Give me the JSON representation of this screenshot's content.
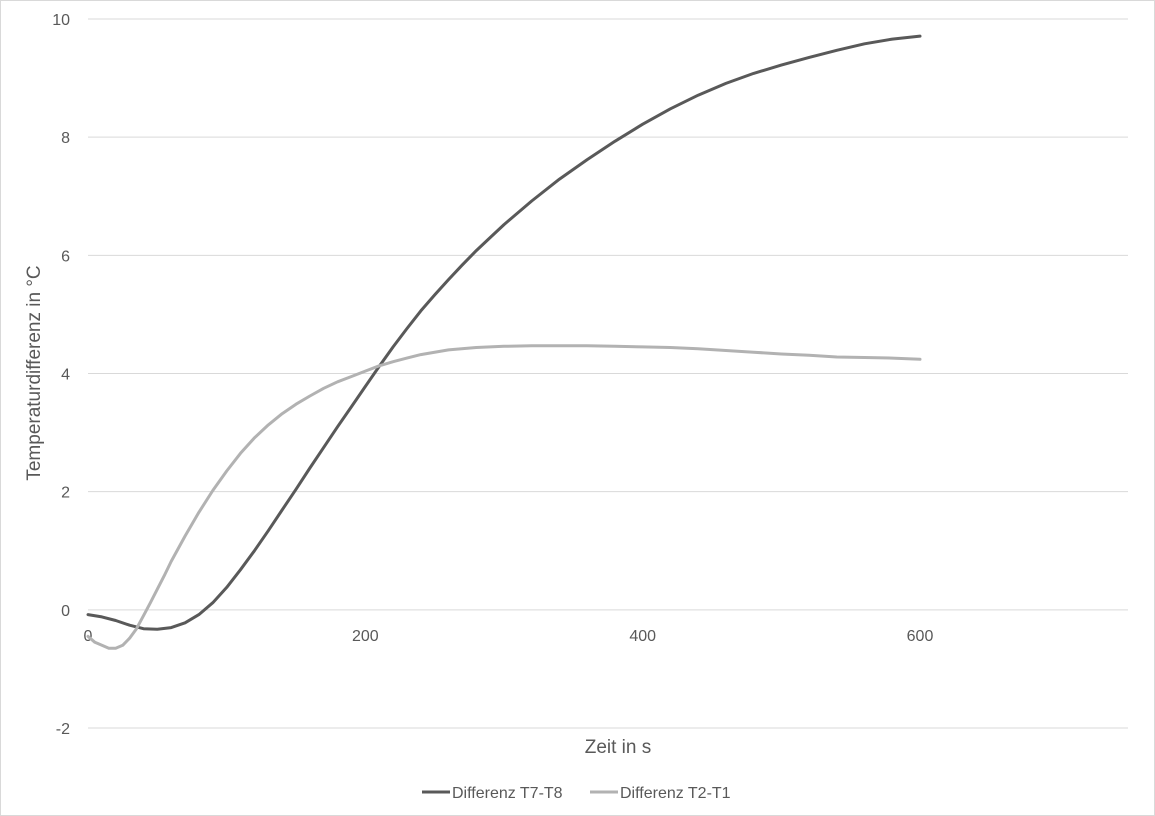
{
  "chart_data": {
    "type": "line",
    "title": "",
    "xlabel": "Zeit in s",
    "ylabel": "Temperaturdifferenz in °C",
    "xlim": [
      0,
      750
    ],
    "ylim": [
      -2,
      10
    ],
    "x_ticks": [
      "0",
      "200",
      "400",
      "600"
    ],
    "y_ticks": [
      "-2",
      "0",
      "2",
      "4",
      "6",
      "8",
      "10"
    ],
    "grid": true,
    "legend_position": "bottom",
    "series": [
      {
        "name": "Differenz T7-T8",
        "color": "#595959",
        "points": [
          [
            0,
            -0.08
          ],
          [
            10,
            -0.12
          ],
          [
            20,
            -0.18
          ],
          [
            30,
            -0.26
          ],
          [
            40,
            -0.32
          ],
          [
            50,
            -0.33
          ],
          [
            60,
            -0.3
          ],
          [
            70,
            -0.22
          ],
          [
            80,
            -0.08
          ],
          [
            90,
            0.12
          ],
          [
            100,
            0.38
          ],
          [
            110,
            0.68
          ],
          [
            120,
            1.0
          ],
          [
            130,
            1.34
          ],
          [
            140,
            1.69
          ],
          [
            150,
            2.04
          ],
          [
            160,
            2.4
          ],
          [
            170,
            2.75
          ],
          [
            180,
            3.1
          ],
          [
            190,
            3.44
          ],
          [
            200,
            3.78
          ],
          [
            210,
            4.12
          ],
          [
            220,
            4.45
          ],
          [
            230,
            4.76
          ],
          [
            240,
            5.06
          ],
          [
            250,
            5.33
          ],
          [
            260,
            5.59
          ],
          [
            270,
            5.84
          ],
          [
            280,
            6.08
          ],
          [
            290,
            6.3
          ],
          [
            300,
            6.52
          ],
          [
            320,
            6.92
          ],
          [
            340,
            7.29
          ],
          [
            360,
            7.62
          ],
          [
            380,
            7.93
          ],
          [
            400,
            8.22
          ],
          [
            420,
            8.48
          ],
          [
            440,
            8.71
          ],
          [
            460,
            8.91
          ],
          [
            480,
            9.08
          ],
          [
            500,
            9.22
          ],
          [
            520,
            9.35
          ],
          [
            540,
            9.47
          ],
          [
            560,
            9.58
          ],
          [
            580,
            9.66
          ],
          [
            600,
            9.71
          ]
        ]
      },
      {
        "name": "Differenz T2-T1",
        "color": "#b2b2b2",
        "points": [
          [
            0,
            -0.45
          ],
          [
            5,
            -0.55
          ],
          [
            10,
            -0.6
          ],
          [
            15,
            -0.65
          ],
          [
            20,
            -0.65
          ],
          [
            25,
            -0.6
          ],
          [
            30,
            -0.48
          ],
          [
            35,
            -0.32
          ],
          [
            40,
            -0.1
          ],
          [
            45,
            0.12
          ],
          [
            50,
            0.35
          ],
          [
            55,
            0.58
          ],
          [
            60,
            0.82
          ],
          [
            70,
            1.25
          ],
          [
            80,
            1.65
          ],
          [
            90,
            2.02
          ],
          [
            100,
            2.35
          ],
          [
            110,
            2.65
          ],
          [
            120,
            2.91
          ],
          [
            130,
            3.13
          ],
          [
            140,
            3.32
          ],
          [
            150,
            3.48
          ],
          [
            160,
            3.62
          ],
          [
            170,
            3.75
          ],
          [
            180,
            3.86
          ],
          [
            190,
            3.95
          ],
          [
            200,
            4.04
          ],
          [
            210,
            4.13
          ],
          [
            220,
            4.2
          ],
          [
            230,
            4.26
          ],
          [
            240,
            4.32
          ],
          [
            260,
            4.4
          ],
          [
            280,
            4.44
          ],
          [
            300,
            4.46
          ],
          [
            320,
            4.47
          ],
          [
            340,
            4.47
          ],
          [
            360,
            4.47
          ],
          [
            380,
            4.46
          ],
          [
            400,
            4.45
          ],
          [
            420,
            4.44
          ],
          [
            440,
            4.42
          ],
          [
            460,
            4.39
          ],
          [
            480,
            4.36
          ],
          [
            500,
            4.33
          ],
          [
            520,
            4.31
          ],
          [
            540,
            4.28
          ],
          [
            560,
            4.27
          ],
          [
            580,
            4.26
          ],
          [
            600,
            4.24
          ]
        ]
      }
    ]
  }
}
